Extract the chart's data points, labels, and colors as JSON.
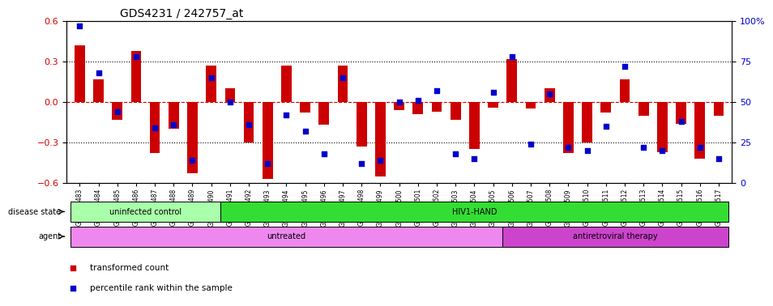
{
  "title": "GDS4231 / 242757_at",
  "samples": [
    "GSM697483",
    "GSM697484",
    "GSM697485",
    "GSM697486",
    "GSM697487",
    "GSM697488",
    "GSM697489",
    "GSM697490",
    "GSM697491",
    "GSM697492",
    "GSM697493",
    "GSM697494",
    "GSM697495",
    "GSM697496",
    "GSM697497",
    "GSM697498",
    "GSM697499",
    "GSM697500",
    "GSM697501",
    "GSM697502",
    "GSM697503",
    "GSM697504",
    "GSM697505",
    "GSM697506",
    "GSM697507",
    "GSM697508",
    "GSM697509",
    "GSM697510",
    "GSM697511",
    "GSM697512",
    "GSM697513",
    "GSM697514",
    "GSM697515",
    "GSM697516",
    "GSM697517"
  ],
  "bar_values": [
    0.42,
    0.17,
    -0.13,
    0.38,
    -0.38,
    -0.2,
    -0.53,
    0.27,
    0.1,
    -0.3,
    -0.57,
    0.27,
    -0.08,
    -0.17,
    0.27,
    -0.33,
    -0.55,
    -0.06,
    -0.09,
    -0.07,
    -0.13,
    -0.35,
    -0.04,
    0.32,
    -0.05,
    0.1,
    -0.38,
    -0.3,
    -0.08,
    0.17,
    -0.1,
    -0.37,
    -0.16,
    -0.42,
    -0.1
  ],
  "percentile_values": [
    97,
    68,
    44,
    78,
    34,
    36,
    14,
    65,
    50,
    36,
    12,
    42,
    32,
    18,
    65,
    12,
    14,
    50,
    51,
    57,
    18,
    15,
    56,
    78,
    24,
    55,
    22,
    20,
    35,
    72,
    22,
    20,
    38,
    22,
    15
  ],
  "ylim": [
    -0.6,
    0.6
  ],
  "yticks": [
    -0.6,
    -0.3,
    0.0,
    0.3,
    0.6
  ],
  "right_ytick_positions": [
    0,
    25,
    50,
    75,
    100
  ],
  "right_yticklabels": [
    "0",
    "25",
    "50",
    "75",
    "100%"
  ],
  "bar_color": "#cc0000",
  "scatter_color": "#0000cc",
  "bar_width": 0.55,
  "disease_state_groups": [
    {
      "label": "uninfected control",
      "start": 0,
      "end": 8,
      "color": "#aaffaa"
    },
    {
      "label": "HIV1-HAND",
      "start": 8,
      "end": 35,
      "color": "#33dd33"
    }
  ],
  "agent_groups": [
    {
      "label": "untreated",
      "start": 0,
      "end": 23,
      "color": "#ee88ee"
    },
    {
      "label": "antiretroviral therapy",
      "start": 23,
      "end": 35,
      "color": "#cc44cc"
    }
  ],
  "disease_state_label": "disease state",
  "agent_label": "agent",
  "legend_items": [
    {
      "label": "transformed count",
      "color": "#cc0000"
    },
    {
      "label": "percentile rank within the sample",
      "color": "#0000cc"
    }
  ],
  "zero_line_color": "#cc0000",
  "grid_color": "#000000",
  "title_fontsize": 10
}
